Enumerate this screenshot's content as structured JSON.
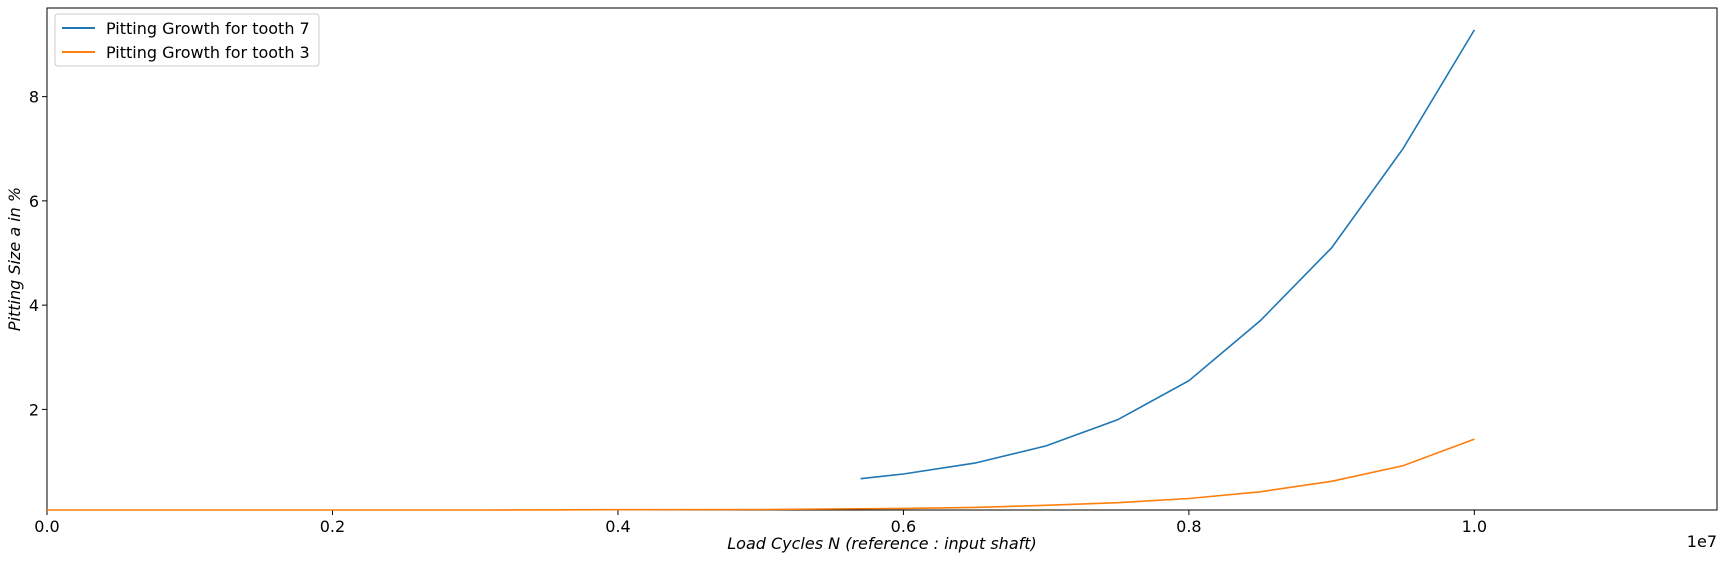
{
  "chart_data": {
    "type": "line",
    "title": "",
    "xlabel": "Load Cycles N (reference :  input shaft)",
    "ylabel": "Pitting Size a in %",
    "x_offset_label": "1e7",
    "xlim": [
      0.0,
      1.17
    ],
    "ylim": [
      0.07,
      9.7
    ],
    "x_ticks": [
      0.0,
      0.2,
      0.4,
      0.6,
      0.8,
      1.0
    ],
    "x_tick_labels": [
      "0.0",
      "0.2",
      "0.4",
      "0.6",
      "0.8",
      "1.0"
    ],
    "y_ticks": [
      2,
      4,
      6,
      8
    ],
    "y_tick_labels": [
      "2",
      "4",
      "6",
      "8"
    ],
    "grid": false,
    "legend_position": "top-left",
    "series": [
      {
        "name": "Pitting Growth for tooth 7",
        "color": "#1f77b4",
        "x": [
          0.57,
          0.6,
          0.65,
          0.7,
          0.75,
          0.8,
          0.85,
          0.9,
          0.95,
          1.0
        ],
        "y": [
          0.67,
          0.76,
          0.97,
          1.3,
          1.8,
          2.55,
          3.7,
          5.1,
          7.0,
          9.28
        ]
      },
      {
        "name": "Pitting Growth for tooth 3",
        "color": "#ff7f0e",
        "x": [
          0.0,
          0.1,
          0.2,
          0.3,
          0.4,
          0.5,
          0.6,
          0.65,
          0.7,
          0.75,
          0.8,
          0.85,
          0.9,
          0.95,
          1.0
        ],
        "y": [
          0.07,
          0.07,
          0.07,
          0.07,
          0.075,
          0.08,
          0.1,
          0.12,
          0.16,
          0.21,
          0.29,
          0.42,
          0.62,
          0.92,
          1.43
        ]
      }
    ]
  }
}
